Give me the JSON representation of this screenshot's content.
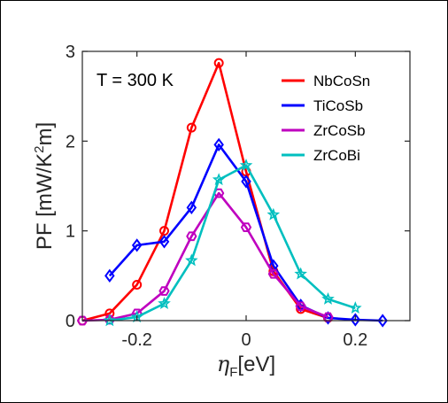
{
  "chart_data": {
    "type": "line",
    "annotation": "T = 300 K",
    "xlabel_symbol": "η",
    "xlabel_subscript": "F",
    "xlabel_unit": "[eV]",
    "ylabel_prefix": "PF [mW/K",
    "ylabel_sup": "2",
    "ylabel_suffix": "m]",
    "xlim": [
      -0.3,
      0.3
    ],
    "ylim": [
      0,
      3
    ],
    "xticks": [
      -0.2,
      0,
      0.2
    ],
    "xtick_labels": [
      "-0.2",
      "0",
      "0.2"
    ],
    "yticks": [
      0,
      1,
      2,
      3
    ],
    "ytick_labels": [
      "0",
      "1",
      "2",
      "3"
    ],
    "grid": false,
    "legend_position": "top-right",
    "series": [
      {
        "name": "NbCoSn",
        "color": "#ff0000",
        "marker": "circle",
        "x": [
          -0.3,
          -0.25,
          -0.2,
          -0.15,
          -0.1,
          -0.05,
          0,
          0.05,
          0.1,
          0.15
        ],
        "y": [
          0.0,
          0.08,
          0.4,
          1.0,
          2.15,
          2.87,
          1.66,
          0.55,
          0.13,
          0.03
        ]
      },
      {
        "name": "TiCoSb",
        "color": "#0000ff",
        "marker": "diamond",
        "x": [
          -0.25,
          -0.2,
          -0.15,
          -0.1,
          -0.05,
          0,
          0.05,
          0.1,
          0.15,
          0.2,
          0.25
        ],
        "y": [
          0.5,
          0.84,
          0.88,
          1.26,
          1.96,
          1.55,
          0.61,
          0.17,
          0.03,
          0.01,
          0.0
        ]
      },
      {
        "name": "ZrCoSb",
        "color": "#bf00bf",
        "marker": "hexagon",
        "x": [
          -0.3,
          -0.25,
          -0.2,
          -0.15,
          -0.1,
          -0.05,
          0,
          0.05,
          0.1,
          0.15
        ],
        "y": [
          0.0,
          0.01,
          0.08,
          0.33,
          0.94,
          1.42,
          1.04,
          0.52,
          0.16,
          0.04
        ]
      },
      {
        "name": "ZrCoBi",
        "color": "#00bfbf",
        "marker": "star",
        "x": [
          -0.25,
          -0.2,
          -0.15,
          -0.1,
          -0.05,
          0,
          0.05,
          0.1,
          0.15,
          0.2
        ],
        "y": [
          0.0,
          0.04,
          0.19,
          0.67,
          1.57,
          1.73,
          1.18,
          0.52,
          0.24,
          0.14
        ]
      }
    ]
  }
}
